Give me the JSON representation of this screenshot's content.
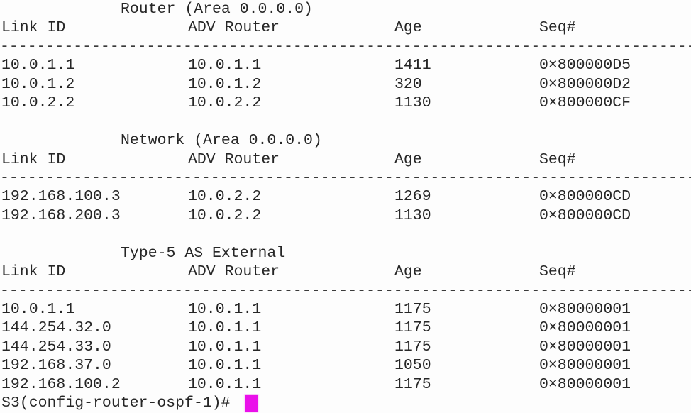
{
  "terminal": {
    "background": "#fdfdfd",
    "text_color": "#262626",
    "cursor_color": "#ea10ea",
    "columns": {
      "link_id": "Link ID",
      "adv_router": "ADV Router",
      "age": "Age",
      "seq": "Seq#"
    },
    "separator": "--------------------------------------------------------------------------------",
    "sections": [
      {
        "title": "Router (Area 0.0.0.0)",
        "rows": [
          {
            "link_id": "10.0.1.1",
            "adv_router": "10.0.1.1",
            "age": "1411",
            "seq": "0×800000D5"
          },
          {
            "link_id": "10.0.1.2",
            "adv_router": "10.0.1.2",
            "age": "320",
            "seq": "0×800000D2"
          },
          {
            "link_id": "10.0.2.2",
            "adv_router": "10.0.2.2",
            "age": "1130",
            "seq": "0×800000CF"
          }
        ]
      },
      {
        "title": "Network (Area 0.0.0.0)",
        "rows": [
          {
            "link_id": "192.168.100.3",
            "adv_router": "10.0.2.2",
            "age": "1269",
            "seq": "0×800000CD"
          },
          {
            "link_id": "192.168.200.3",
            "adv_router": "10.0.2.2",
            "age": "1130",
            "seq": "0×800000CD"
          }
        ]
      },
      {
        "title": "Type-5 AS External",
        "rows": [
          {
            "link_id": "10.0.1.1",
            "adv_router": "10.0.1.1",
            "age": "1175",
            "seq": "0×80000001"
          },
          {
            "link_id": "144.254.32.0",
            "adv_router": "10.0.1.1",
            "age": "1175",
            "seq": "0×80000001"
          },
          {
            "link_id": "144.254.33.0",
            "adv_router": "10.0.1.1",
            "age": "1175",
            "seq": "0×80000001"
          },
          {
            "link_id": "192.168.37.0",
            "adv_router": "10.0.1.1",
            "age": "1050",
            "seq": "0×80000001"
          },
          {
            "link_id": "192.168.100.2",
            "adv_router": "10.0.1.1",
            "age": "1175",
            "seq": "0×80000001"
          }
        ]
      }
    ],
    "prompt": "S3(config-router-ospf-1)# "
  }
}
